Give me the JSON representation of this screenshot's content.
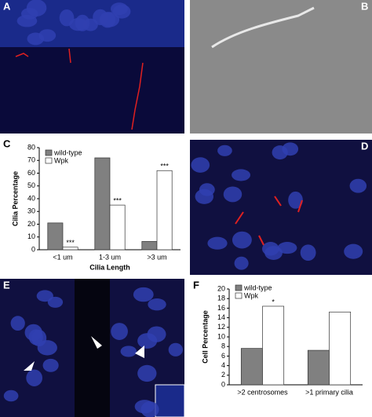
{
  "panels": [
    "A",
    "B",
    "C",
    "D",
    "E",
    "F"
  ],
  "chart_data": [
    {
      "type": "bar",
      "y_label": "Cilia Percentage",
      "x_label": "Cilia Length",
      "categories": [
        "<1 um",
        "1-3 um",
        ">3 um"
      ],
      "series": [
        {
          "name": "wild-type",
          "color": "#808080",
          "values": [
            21,
            72,
            6.5
          ]
        },
        {
          "name": "Wpk",
          "color": "#ffffff",
          "values": [
            2,
            35,
            62
          ],
          "marks": [
            "***",
            "***",
            "***"
          ]
        }
      ],
      "ylim": [
        0,
        80
      ],
      "yticks": [
        0,
        10,
        20,
        30,
        40,
        50,
        60,
        70,
        80
      ]
    },
    {
      "type": "bar",
      "y_label": "Cell Percentage",
      "categories": [
        ">2 centrosomes",
        ">1 primary cilia"
      ],
      "series": [
        {
          "name": "wild-type",
          "color": "#808080",
          "values": [
            7.6,
            7.2
          ]
        },
        {
          "name": "Wpk",
          "color": "#ffffff",
          "values": [
            16.4,
            15.2
          ],
          "marks": [
            "*",
            null
          ]
        }
      ],
      "ylim": [
        0,
        20
      ],
      "yticks": [
        0,
        2,
        4,
        6,
        8,
        10,
        12,
        14,
        16,
        18,
        20
      ]
    }
  ]
}
